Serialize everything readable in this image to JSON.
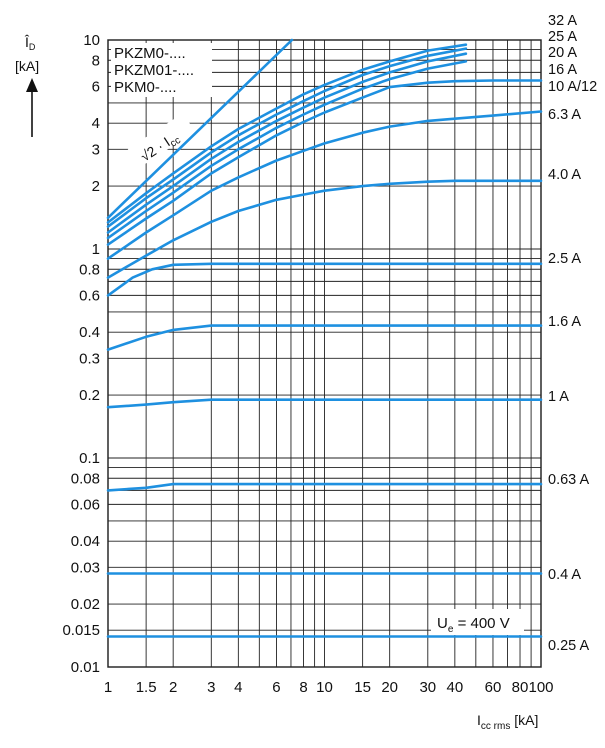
{
  "chart_data": {
    "type": "line",
    "title": "",
    "xlabel": {
      "main": "I",
      "sub": "cc rms",
      "unit": " [kA]"
    },
    "ylabel": {
      "main": "Î",
      "sub": "D",
      "unit": "[kA]"
    },
    "x_scale": "log",
    "y_scale": "log",
    "xlim": [
      1,
      100
    ],
    "ylim": [
      0.01,
      10
    ],
    "grid": true,
    "x_ticks": [
      {
        "v": 1,
        "t": "1"
      },
      {
        "v": 1.5,
        "t": "1.5"
      },
      {
        "v": 2,
        "t": "2"
      },
      {
        "v": 3,
        "t": "3"
      },
      {
        "v": 4,
        "t": "4"
      },
      {
        "v": 6,
        "t": "6"
      },
      {
        "v": 8,
        "t": "8"
      },
      {
        "v": 10,
        "t": "10"
      },
      {
        "v": 15,
        "t": "15"
      },
      {
        "v": 20,
        "t": "20"
      },
      {
        "v": 30,
        "t": "30"
      },
      {
        "v": 40,
        "t": "40"
      },
      {
        "v": 60,
        "t": "60"
      },
      {
        "v": 80,
        "t": "80"
      },
      {
        "v": 100,
        "t": "100"
      }
    ],
    "y_ticks": [
      {
        "v": 0.01,
        "t": "0.01"
      },
      {
        "v": 0.015,
        "t": "0.015"
      },
      {
        "v": 0.02,
        "t": "0.02"
      },
      {
        "v": 0.03,
        "t": "0.03"
      },
      {
        "v": 0.04,
        "t": "0.04"
      },
      {
        "v": 0.06,
        "t": "0.06"
      },
      {
        "v": 0.08,
        "t": "0.08"
      },
      {
        "v": 0.1,
        "t": "0.1"
      },
      {
        "v": 0.2,
        "t": "0.2"
      },
      {
        "v": 0.3,
        "t": "0.3"
      },
      {
        "v": 0.4,
        "t": "0.4"
      },
      {
        "v": 0.6,
        "t": "0.6"
      },
      {
        "v": 0.8,
        "t": "0.8"
      },
      {
        "v": 1,
        "t": "1"
      },
      {
        "v": 2,
        "t": "2"
      },
      {
        "v": 3,
        "t": "3"
      },
      {
        "v": 4,
        "t": "4"
      },
      {
        "v": 6,
        "t": "6"
      },
      {
        "v": 8,
        "t": "8"
      },
      {
        "v": 10,
        "t": "10"
      }
    ],
    "x_gridlines": [
      1,
      1.5,
      2,
      3,
      4,
      5,
      6,
      7,
      8,
      9,
      10,
      15,
      20,
      30,
      40,
      50,
      60,
      70,
      80,
      90,
      100
    ],
    "y_gridlines": [
      0.01,
      0.015,
      0.02,
      0.03,
      0.04,
      0.05,
      0.06,
      0.07,
      0.08,
      0.09,
      0.1,
      0.2,
      0.3,
      0.4,
      0.5,
      0.6,
      0.7,
      0.8,
      0.9,
      1,
      2,
      3,
      4,
      5,
      6,
      7,
      8,
      9,
      10
    ],
    "series_color": "#1e90e0",
    "series": [
      {
        "name": "√2 · Icc",
        "points": [
          [
            1,
            1.41
          ],
          [
            5.8,
            8.2
          ],
          [
            7.07,
            10
          ]
        ]
      },
      {
        "name": "32 A",
        "points": [
          [
            1,
            1.34
          ],
          [
            1.5,
            1.85
          ],
          [
            2,
            2.3
          ],
          [
            3,
            3.1
          ],
          [
            4,
            3.75
          ],
          [
            6,
            4.7
          ],
          [
            8,
            5.5
          ],
          [
            10,
            6.1
          ],
          [
            15,
            7.2
          ],
          [
            20,
            7.9
          ],
          [
            30,
            8.9
          ],
          [
            45,
            9.5
          ]
        ]
      },
      {
        "name": "25 A",
        "points": [
          [
            1,
            1.28
          ],
          [
            1.5,
            1.75
          ],
          [
            2,
            2.15
          ],
          [
            3,
            2.9
          ],
          [
            4,
            3.5
          ],
          [
            6,
            4.4
          ],
          [
            8,
            5.1
          ],
          [
            10,
            5.7
          ],
          [
            15,
            6.8
          ],
          [
            20,
            7.5
          ],
          [
            30,
            8.4
          ],
          [
            45,
            9.1
          ]
        ]
      },
      {
        "name": "20 A",
        "points": [
          [
            1,
            1.2
          ],
          [
            1.5,
            1.63
          ],
          [
            2,
            2.0
          ],
          [
            3,
            2.7
          ],
          [
            4,
            3.25
          ],
          [
            6,
            4.1
          ],
          [
            8,
            4.75
          ],
          [
            10,
            5.3
          ],
          [
            15,
            6.3
          ],
          [
            20,
            7.0
          ],
          [
            30,
            7.9
          ],
          [
            45,
            8.6
          ]
        ]
      },
      {
        "name": "16 A",
        "points": [
          [
            1,
            1.13
          ],
          [
            1.5,
            1.52
          ],
          [
            2,
            1.86
          ],
          [
            3,
            2.5
          ],
          [
            4,
            3.0
          ],
          [
            6,
            3.8
          ],
          [
            8,
            4.4
          ],
          [
            10,
            4.9
          ],
          [
            15,
            5.85
          ],
          [
            20,
            6.5
          ],
          [
            30,
            7.3
          ],
          [
            45,
            7.9
          ]
        ]
      },
      {
        "name": "10 A/12",
        "points": [
          [
            1,
            1.05
          ],
          [
            1.5,
            1.4
          ],
          [
            2,
            1.7
          ],
          [
            3,
            2.3
          ],
          [
            4,
            2.75
          ],
          [
            6,
            3.5
          ],
          [
            8,
            4.05
          ],
          [
            10,
            4.5
          ],
          [
            15,
            5.3
          ],
          [
            20,
            5.95
          ],
          [
            30,
            6.25
          ],
          [
            40,
            6.35
          ],
          [
            60,
            6.4
          ],
          [
            100,
            6.4
          ]
        ]
      },
      {
        "name": "6.3 A",
        "points": [
          [
            1,
            0.9
          ],
          [
            1.5,
            1.2
          ],
          [
            2,
            1.45
          ],
          [
            3,
            1.9
          ],
          [
            4,
            2.2
          ],
          [
            6,
            2.65
          ],
          [
            8,
            2.95
          ],
          [
            10,
            3.2
          ],
          [
            15,
            3.6
          ],
          [
            20,
            3.85
          ],
          [
            30,
            4.1
          ],
          [
            40,
            4.2
          ],
          [
            60,
            4.35
          ],
          [
            100,
            4.55
          ]
        ]
      },
      {
        "name": "4.0 A",
        "points": [
          [
            1,
            0.73
          ],
          [
            1.5,
            0.93
          ],
          [
            2,
            1.1
          ],
          [
            3,
            1.35
          ],
          [
            4,
            1.52
          ],
          [
            6,
            1.72
          ],
          [
            8,
            1.82
          ],
          [
            10,
            1.9
          ],
          [
            15,
            2.0
          ],
          [
            20,
            2.05
          ],
          [
            30,
            2.1
          ],
          [
            40,
            2.12
          ],
          [
            100,
            2.12
          ]
        ]
      },
      {
        "name": "2.5 A",
        "points": [
          [
            1,
            0.6
          ],
          [
            1.3,
            0.73
          ],
          [
            1.6,
            0.8
          ],
          [
            2,
            0.84
          ],
          [
            3,
            0.85
          ],
          [
            100,
            0.85
          ]
        ]
      },
      {
        "name": "1.6 A",
        "points": [
          [
            1,
            0.33
          ],
          [
            1.5,
            0.38
          ],
          [
            2,
            0.41
          ],
          [
            3,
            0.43
          ],
          [
            100,
            0.43
          ]
        ]
      },
      {
        "name": "1 A",
        "points": [
          [
            1,
            0.175
          ],
          [
            1.5,
            0.18
          ],
          [
            2,
            0.185
          ],
          [
            3,
            0.19
          ],
          [
            100,
            0.19
          ]
        ]
      },
      {
        "name": "0.63 A",
        "points": [
          [
            1,
            0.07
          ],
          [
            1.5,
            0.072
          ],
          [
            2,
            0.075
          ],
          [
            100,
            0.075
          ]
        ]
      },
      {
        "name": "0.4 A",
        "points": [
          [
            1,
            0.028
          ],
          [
            100,
            0.028
          ]
        ]
      },
      {
        "name": "0.25 A",
        "points": [
          [
            1,
            0.014
          ],
          [
            100,
            0.014
          ]
        ]
      }
    ],
    "curve_labels": [
      "32 A",
      "25 A",
      "20 A",
      "16 A",
      "10 A/12",
      "6.3 A",
      "4.0 A",
      "2.5 A",
      "1.6 A",
      "1 A",
      "0.63 A",
      "0.4 A",
      "0.25 A"
    ],
    "legend_lines": [
      "PKZM0-....",
      "PKZM01-....",
      "PKM0-...."
    ],
    "annotation_sqrt": {
      "radical": "√2",
      "dot": "·",
      "i": "I",
      "sub": "cc"
    },
    "voltage_box": {
      "main": "U",
      "sub": "e",
      "rest": " = 400 V"
    }
  }
}
